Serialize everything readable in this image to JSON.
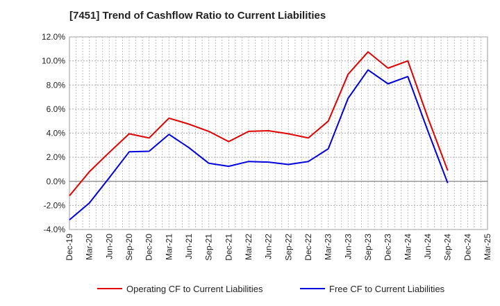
{
  "chart_data": {
    "type": "line",
    "title": "[7451]  Trend of Cashflow Ratio to Current Liabilities",
    "xlabel": "",
    "ylabel": "",
    "ylim": [
      -4.0,
      12.0
    ],
    "ytick_step": 2.0,
    "ytick_labels": [
      "-4.0%",
      "-2.0%",
      "0.0%",
      "2.0%",
      "4.0%",
      "6.0%",
      "8.0%",
      "10.0%",
      "12.0%"
    ],
    "xtick_labels": [
      "Dec-19",
      "Mar-20",
      "Jun-20",
      "Sep-20",
      "Dec-20",
      "Mar-21",
      "Jun-21",
      "Sep-21",
      "Dec-21",
      "Mar-22",
      "Jun-22",
      "Sep-22",
      "Dec-22",
      "Mar-23",
      "Jun-23",
      "Sep-23",
      "Dec-23",
      "Mar-24",
      "Jun-24",
      "Sep-24",
      "Dec-24",
      "Mar-25"
    ],
    "grid": true,
    "legend_position": "bottom",
    "series": [
      {
        "name": "Operating CF to Current Liabilities",
        "color": "#e00000",
        "values": [
          -1.2,
          0.8,
          2.4,
          3.95,
          3.6,
          5.25,
          4.75,
          4.15,
          3.3,
          4.15,
          4.2,
          3.95,
          3.6,
          5.0,
          8.9,
          10.75,
          9.4,
          10.0,
          5.3,
          0.9
        ]
      },
      {
        "name": "Free CF to Current Liabilities",
        "color": "#0000dd",
        "values": [
          -3.2,
          -1.8,
          0.3,
          2.45,
          2.5,
          3.9,
          2.8,
          1.5,
          1.25,
          1.65,
          1.6,
          1.4,
          1.65,
          2.7,
          6.9,
          9.25,
          8.1,
          8.7,
          4.2,
          -0.15
        ]
      }
    ]
  }
}
